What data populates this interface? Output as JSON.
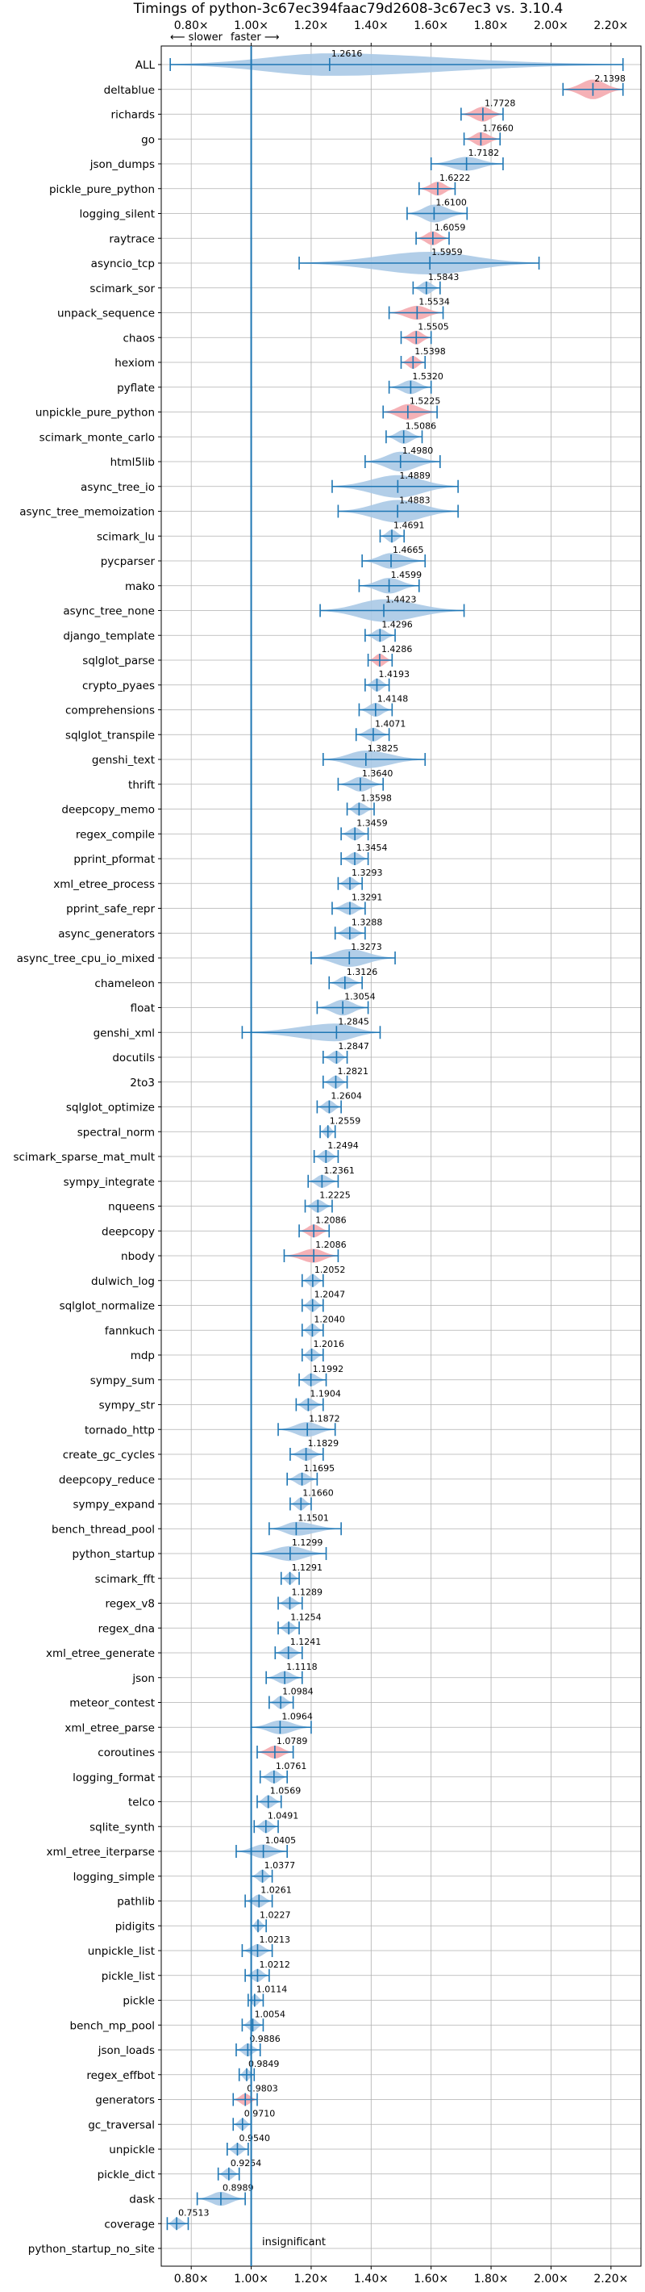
{
  "chart_data": {
    "type": "violin",
    "title": "Timings of python-3c67ec394faac79d2608-3c67ec3 vs. 3.10.4",
    "direction_hint_slower": "⟵ slower",
    "direction_hint_faster": "faster ⟶",
    "xlim": [
      0.7,
      2.3
    ],
    "xticks": [
      0.8,
      1.0,
      1.2,
      1.4,
      1.6,
      1.8,
      2.0,
      2.2
    ],
    "xtick_labels": [
      "0.80×",
      "1.00×",
      "1.20×",
      "1.40×",
      "1.60×",
      "1.80×",
      "2.00×",
      "2.20×"
    ],
    "reference_line": 1.0,
    "insignificant_label": "insignificant",
    "grid": true,
    "colors": {
      "normal": "#aac9e5",
      "highlight": "#f4a9ae",
      "line": "#1f77b4",
      "grid": "#b0b0b0"
    },
    "benchmarks": [
      {
        "name": "ALL",
        "value": 1.2616,
        "label": "1.2616",
        "min": 0.73,
        "max": 2.24,
        "width": 0.2,
        "highlight": false
      },
      {
        "name": "deltablue",
        "value": 2.1398,
        "label": "2.1398",
        "min": 2.04,
        "max": 2.24,
        "width": 0.12,
        "highlight": true
      },
      {
        "name": "richards",
        "value": 1.7728,
        "label": "1.7728",
        "min": 1.7,
        "max": 1.84,
        "width": 0.07,
        "highlight": true
      },
      {
        "name": "go",
        "value": 1.766,
        "label": "1.7660",
        "min": 1.71,
        "max": 1.83,
        "width": 0.06,
        "highlight": true
      },
      {
        "name": "json_dumps",
        "value": 1.7182,
        "label": "1.7182",
        "min": 1.6,
        "max": 1.84,
        "width": 0.06,
        "highlight": false
      },
      {
        "name": "pickle_pure_python",
        "value": 1.6222,
        "label": "1.6222",
        "min": 1.56,
        "max": 1.68,
        "width": 0.06,
        "highlight": true
      },
      {
        "name": "logging_silent",
        "value": 1.61,
        "label": "1.6100",
        "min": 1.52,
        "max": 1.72,
        "width": 0.1,
        "highlight": false
      },
      {
        "name": "raytrace",
        "value": 1.6059,
        "label": "1.6059",
        "min": 1.55,
        "max": 1.66,
        "width": 0.06,
        "highlight": true
      },
      {
        "name": "asyncio_tcp",
        "value": 1.5959,
        "label": "1.5959",
        "min": 1.16,
        "max": 1.96,
        "width": 0.36,
        "highlight": false
      },
      {
        "name": "scimark_sor",
        "value": 1.5843,
        "label": "1.5843",
        "min": 1.54,
        "max": 1.63,
        "width": 0.05,
        "highlight": false
      },
      {
        "name": "unpack_sequence",
        "value": 1.5534,
        "label": "1.5534",
        "min": 1.46,
        "max": 1.64,
        "width": 0.06,
        "highlight": true
      },
      {
        "name": "chaos",
        "value": 1.5505,
        "label": "1.5505",
        "min": 1.5,
        "max": 1.6,
        "width": 0.06,
        "highlight": true
      },
      {
        "name": "hexiom",
        "value": 1.5398,
        "label": "1.5398",
        "min": 1.5,
        "max": 1.58,
        "width": 0.05,
        "highlight": true
      },
      {
        "name": "pyflate",
        "value": 1.532,
        "label": "1.5320",
        "min": 1.46,
        "max": 1.6,
        "width": 0.06,
        "highlight": false
      },
      {
        "name": "unpickle_pure_python",
        "value": 1.5225,
        "label": "1.5225",
        "min": 1.44,
        "max": 1.62,
        "width": 0.08,
        "highlight": true
      },
      {
        "name": "scimark_monte_carlo",
        "value": 1.5086,
        "label": "1.5086",
        "min": 1.45,
        "max": 1.57,
        "width": 0.06,
        "highlight": false
      },
      {
        "name": "html5lib",
        "value": 1.498,
        "label": "1.4980",
        "min": 1.38,
        "max": 1.63,
        "width": 0.12,
        "highlight": false
      },
      {
        "name": "async_tree_io",
        "value": 1.4889,
        "label": "1.4889",
        "min": 1.27,
        "max": 1.69,
        "width": 0.16,
        "highlight": false
      },
      {
        "name": "async_tree_memoization",
        "value": 1.4883,
        "label": "1.4883",
        "min": 1.29,
        "max": 1.69,
        "width": 0.16,
        "highlight": false
      },
      {
        "name": "scimark_lu",
        "value": 1.4691,
        "label": "1.4691",
        "min": 1.43,
        "max": 1.51,
        "width": 0.05,
        "highlight": false
      },
      {
        "name": "pycparser",
        "value": 1.4665,
        "label": "1.4665",
        "min": 1.37,
        "max": 1.58,
        "width": 0.08,
        "highlight": false
      },
      {
        "name": "mako",
        "value": 1.4599,
        "label": "1.4599",
        "min": 1.36,
        "max": 1.56,
        "width": 0.08,
        "highlight": false
      },
      {
        "name": "async_tree_none",
        "value": 1.4423,
        "label": "1.4423",
        "min": 1.23,
        "max": 1.71,
        "width": 0.18,
        "highlight": false
      },
      {
        "name": "django_template",
        "value": 1.4296,
        "label": "1.4296",
        "min": 1.38,
        "max": 1.48,
        "width": 0.05,
        "highlight": false
      },
      {
        "name": "sqlglot_parse",
        "value": 1.4286,
        "label": "1.4286",
        "min": 1.39,
        "max": 1.47,
        "width": 0.05,
        "highlight": true
      },
      {
        "name": "crypto_pyaes",
        "value": 1.4193,
        "label": "1.4193",
        "min": 1.38,
        "max": 1.46,
        "width": 0.05,
        "highlight": false
      },
      {
        "name": "comprehensions",
        "value": 1.4148,
        "label": "1.4148",
        "min": 1.36,
        "max": 1.47,
        "width": 0.06,
        "highlight": false
      },
      {
        "name": "sqlglot_transpile",
        "value": 1.4071,
        "label": "1.4071",
        "min": 1.35,
        "max": 1.46,
        "width": 0.06,
        "highlight": false
      },
      {
        "name": "genshi_text",
        "value": 1.3825,
        "label": "1.3825",
        "min": 1.24,
        "max": 1.58,
        "width": 0.1,
        "highlight": false
      },
      {
        "name": "thrift",
        "value": 1.364,
        "label": "1.3640",
        "min": 1.29,
        "max": 1.44,
        "width": 0.07,
        "highlight": false
      },
      {
        "name": "deepcopy_memo",
        "value": 1.3598,
        "label": "1.3598",
        "min": 1.32,
        "max": 1.41,
        "width": 0.05,
        "highlight": false
      },
      {
        "name": "regex_compile",
        "value": 1.3459,
        "label": "1.3459",
        "min": 1.3,
        "max": 1.39,
        "width": 0.05,
        "highlight": false
      },
      {
        "name": "pprint_pformat",
        "value": 1.3454,
        "label": "1.3454",
        "min": 1.3,
        "max": 1.39,
        "width": 0.05,
        "highlight": false
      },
      {
        "name": "xml_etree_process",
        "value": 1.3293,
        "label": "1.3293",
        "min": 1.29,
        "max": 1.37,
        "width": 0.05,
        "highlight": false
      },
      {
        "name": "pprint_safe_repr",
        "value": 1.3291,
        "label": "1.3291",
        "min": 1.27,
        "max": 1.38,
        "width": 0.05,
        "highlight": false
      },
      {
        "name": "async_generators",
        "value": 1.3288,
        "label": "1.3288",
        "min": 1.28,
        "max": 1.38,
        "width": 0.05,
        "highlight": false
      },
      {
        "name": "async_tree_cpu_io_mixed",
        "value": 1.3273,
        "label": "1.3273",
        "min": 1.2,
        "max": 1.48,
        "width": 0.1,
        "highlight": false
      },
      {
        "name": "chameleon",
        "value": 1.3126,
        "label": "1.3126",
        "min": 1.26,
        "max": 1.37,
        "width": 0.05,
        "highlight": false
      },
      {
        "name": "float",
        "value": 1.3054,
        "label": "1.3054",
        "min": 1.22,
        "max": 1.39,
        "width": 0.08,
        "highlight": false
      },
      {
        "name": "genshi_xml",
        "value": 1.2845,
        "label": "1.2845",
        "min": 0.97,
        "max": 1.43,
        "width": 0.1,
        "highlight": false
      },
      {
        "name": "docutils",
        "value": 1.2847,
        "label": "1.2847",
        "min": 1.24,
        "max": 1.32,
        "width": 0.05,
        "highlight": false
      },
      {
        "name": "2to3",
        "value": 1.2821,
        "label": "1.2821",
        "min": 1.24,
        "max": 1.32,
        "width": 0.05,
        "highlight": false
      },
      {
        "name": "sqlglot_optimize",
        "value": 1.2604,
        "label": "1.2604",
        "min": 1.22,
        "max": 1.3,
        "width": 0.05,
        "highlight": false
      },
      {
        "name": "spectral_norm",
        "value": 1.2559,
        "label": "1.2559",
        "min": 1.23,
        "max": 1.28,
        "width": 0.04,
        "highlight": false
      },
      {
        "name": "scimark_sparse_mat_mult",
        "value": 1.2494,
        "label": "1.2494",
        "min": 1.21,
        "max": 1.29,
        "width": 0.05,
        "highlight": false
      },
      {
        "name": "sympy_integrate",
        "value": 1.2361,
        "label": "1.2361",
        "min": 1.19,
        "max": 1.29,
        "width": 0.05,
        "highlight": false
      },
      {
        "name": "nqueens",
        "value": 1.2225,
        "label": "1.2225",
        "min": 1.18,
        "max": 1.27,
        "width": 0.05,
        "highlight": false
      },
      {
        "name": "deepcopy",
        "value": 1.2086,
        "label": "1.2086",
        "min": 1.16,
        "max": 1.26,
        "width": 0.05,
        "highlight": true
      },
      {
        "name": "nbody",
        "value": 1.2086,
        "label": "1.2086",
        "min": 1.11,
        "max": 1.29,
        "width": 0.06,
        "highlight": true
      },
      {
        "name": "dulwich_log",
        "value": 1.2052,
        "label": "1.2052",
        "min": 1.17,
        "max": 1.24,
        "width": 0.05,
        "highlight": false
      },
      {
        "name": "sqlglot_normalize",
        "value": 1.2047,
        "label": "1.2047",
        "min": 1.17,
        "max": 1.24,
        "width": 0.05,
        "highlight": false
      },
      {
        "name": "fannkuch",
        "value": 1.204,
        "label": "1.2040",
        "min": 1.17,
        "max": 1.24,
        "width": 0.05,
        "highlight": false
      },
      {
        "name": "mdp",
        "value": 1.2016,
        "label": "1.2016",
        "min": 1.17,
        "max": 1.24,
        "width": 0.05,
        "highlight": false
      },
      {
        "name": "sympy_sum",
        "value": 1.1992,
        "label": "1.1992",
        "min": 1.16,
        "max": 1.25,
        "width": 0.05,
        "highlight": false
      },
      {
        "name": "sympy_str",
        "value": 1.1904,
        "label": "1.1904",
        "min": 1.15,
        "max": 1.24,
        "width": 0.05,
        "highlight": false
      },
      {
        "name": "tornado_http",
        "value": 1.1872,
        "label": "1.1872",
        "min": 1.09,
        "max": 1.28,
        "width": 0.07,
        "highlight": false
      },
      {
        "name": "create_gc_cycles",
        "value": 1.1829,
        "label": "1.1829",
        "min": 1.13,
        "max": 1.24,
        "width": 0.05,
        "highlight": false
      },
      {
        "name": "deepcopy_reduce",
        "value": 1.1695,
        "label": "1.1695",
        "min": 1.12,
        "max": 1.22,
        "width": 0.05,
        "highlight": false
      },
      {
        "name": "sympy_expand",
        "value": 1.166,
        "label": "1.1660",
        "min": 1.13,
        "max": 1.2,
        "width": 0.05,
        "highlight": false
      },
      {
        "name": "bench_thread_pool",
        "value": 1.1501,
        "label": "1.1501",
        "min": 1.06,
        "max": 1.3,
        "width": 0.06,
        "highlight": false
      },
      {
        "name": "python_startup",
        "value": 1.1299,
        "label": "1.1299",
        "min": 1.0,
        "max": 1.25,
        "width": 0.07,
        "highlight": false
      },
      {
        "name": "scimark_fft",
        "value": 1.1291,
        "label": "1.1291",
        "min": 1.1,
        "max": 1.16,
        "width": 0.04,
        "highlight": false
      },
      {
        "name": "regex_v8",
        "value": 1.1289,
        "label": "1.1289",
        "min": 1.09,
        "max": 1.17,
        "width": 0.04,
        "highlight": false
      },
      {
        "name": "regex_dna",
        "value": 1.1254,
        "label": "1.1254",
        "min": 1.09,
        "max": 1.16,
        "width": 0.04,
        "highlight": false
      },
      {
        "name": "xml_etree_generate",
        "value": 1.1241,
        "label": "1.1241",
        "min": 1.08,
        "max": 1.17,
        "width": 0.05,
        "highlight": false
      },
      {
        "name": "json",
        "value": 1.1118,
        "label": "1.1118",
        "min": 1.05,
        "max": 1.17,
        "width": 0.05,
        "highlight": false
      },
      {
        "name": "meteor_contest",
        "value": 1.0984,
        "label": "1.0984",
        "min": 1.06,
        "max": 1.14,
        "width": 0.05,
        "highlight": false
      },
      {
        "name": "xml_etree_parse",
        "value": 1.0964,
        "label": "1.0964",
        "min": 1.0,
        "max": 1.2,
        "width": 0.06,
        "highlight": false
      },
      {
        "name": "coroutines",
        "value": 1.0789,
        "label": "1.0789",
        "min": 1.02,
        "max": 1.14,
        "width": 0.05,
        "highlight": true
      },
      {
        "name": "logging_format",
        "value": 1.0761,
        "label": "1.0761",
        "min": 1.03,
        "max": 1.12,
        "width": 0.05,
        "highlight": false
      },
      {
        "name": "telco",
        "value": 1.0569,
        "label": "1.0569",
        "min": 1.02,
        "max": 1.1,
        "width": 0.05,
        "highlight": false
      },
      {
        "name": "sqlite_synth",
        "value": 1.0491,
        "label": "1.0491",
        "min": 1.01,
        "max": 1.09,
        "width": 0.05,
        "highlight": false
      },
      {
        "name": "xml_etree_iterparse",
        "value": 1.0405,
        "label": "1.0405",
        "min": 0.95,
        "max": 1.12,
        "width": 0.06,
        "highlight": false
      },
      {
        "name": "logging_simple",
        "value": 1.0377,
        "label": "1.0377",
        "min": 1.0,
        "max": 1.07,
        "width": 0.05,
        "highlight": false
      },
      {
        "name": "pathlib",
        "value": 1.0261,
        "label": "1.0261",
        "min": 0.98,
        "max": 1.07,
        "width": 0.05,
        "highlight": false
      },
      {
        "name": "pidigits",
        "value": 1.0227,
        "label": "1.0227",
        "min": 1.0,
        "max": 1.05,
        "width": 0.04,
        "highlight": false
      },
      {
        "name": "unpickle_list",
        "value": 1.0213,
        "label": "1.0213",
        "min": 0.97,
        "max": 1.07,
        "width": 0.05,
        "highlight": false
      },
      {
        "name": "pickle_list",
        "value": 1.0212,
        "label": "1.0212",
        "min": 0.98,
        "max": 1.06,
        "width": 0.05,
        "highlight": false
      },
      {
        "name": "pickle",
        "value": 1.0114,
        "label": "1.0114",
        "min": 0.99,
        "max": 1.04,
        "width": 0.04,
        "highlight": false
      },
      {
        "name": "bench_mp_pool",
        "value": 1.0054,
        "label": "1.0054",
        "min": 0.97,
        "max": 1.04,
        "width": 0.05,
        "highlight": false
      },
      {
        "name": "json_loads",
        "value": 0.9886,
        "label": "0.9886",
        "min": 0.95,
        "max": 1.03,
        "width": 0.05,
        "highlight": false
      },
      {
        "name": "regex_effbot",
        "value": 0.9849,
        "label": "0.9849",
        "min": 0.96,
        "max": 1.01,
        "width": 0.04,
        "highlight": false
      },
      {
        "name": "generators",
        "value": 0.9803,
        "label": "0.9803",
        "min": 0.94,
        "max": 1.02,
        "width": 0.04,
        "highlight": true
      },
      {
        "name": "gc_traversal",
        "value": 0.971,
        "label": "0.9710",
        "min": 0.94,
        "max": 1.0,
        "width": 0.04,
        "highlight": false
      },
      {
        "name": "unpickle",
        "value": 0.954,
        "label": "0.9540",
        "min": 0.92,
        "max": 0.99,
        "width": 0.04,
        "highlight": false
      },
      {
        "name": "pickle_dict",
        "value": 0.9254,
        "label": "0.9254",
        "min": 0.89,
        "max": 0.96,
        "width": 0.04,
        "highlight": false
      },
      {
        "name": "dask",
        "value": 0.8989,
        "label": "0.8989",
        "min": 0.82,
        "max": 0.98,
        "width": 0.06,
        "highlight": false
      },
      {
        "name": "coverage",
        "value": 0.7513,
        "label": "0.7513",
        "min": 0.72,
        "max": 0.79,
        "width": 0.04,
        "highlight": false
      },
      {
        "name": "python_startup_no_site",
        "value": null,
        "label": "",
        "min": null,
        "max": null,
        "width": 0,
        "highlight": false
      }
    ]
  }
}
